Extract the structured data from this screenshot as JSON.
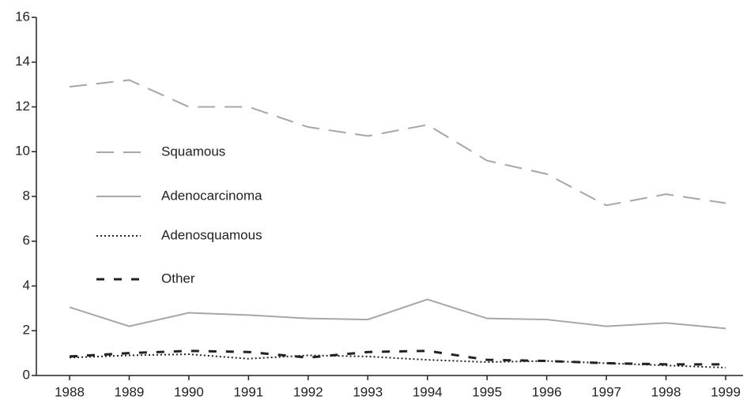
{
  "chart_data": {
    "type": "line",
    "categories": [
      "1988",
      "1989",
      "1990",
      "1991",
      "1992",
      "1993",
      "1994",
      "1995",
      "1996",
      "1997",
      "1998",
      "1999"
    ],
    "series": [
      {
        "name": "Squamous",
        "color": "#a6a6a6",
        "style": "dashed",
        "values": [
          12.9,
          13.2,
          12.0,
          12.0,
          11.1,
          10.7,
          11.2,
          9.6,
          9.0,
          7.6,
          8.1,
          7.7
        ]
      },
      {
        "name": "Adenocarcinoma",
        "color": "#a6a6a6",
        "style": "solid",
        "values": [
          3.05,
          2.2,
          2.8,
          2.7,
          2.55,
          2.5,
          3.4,
          2.55,
          2.5,
          2.2,
          2.35,
          2.1
        ]
      },
      {
        "name": "Adenosquamous",
        "color": "#222222",
        "style": "dotted",
        "values": [
          0.8,
          0.9,
          0.95,
          0.75,
          0.9,
          0.85,
          0.7,
          0.6,
          0.65,
          0.55,
          0.45,
          0.35
        ]
      },
      {
        "name": "Other",
        "color": "#222222",
        "style": "dashed-bold",
        "values": [
          0.85,
          1.0,
          1.1,
          1.05,
          0.8,
          1.05,
          1.1,
          0.7,
          0.65,
          0.55,
          0.5,
          0.5
        ]
      }
    ],
    "ylim": [
      0,
      16
    ],
    "yticks": [
      0,
      2,
      4,
      6,
      8,
      10,
      12,
      14,
      16
    ],
    "grid": false,
    "legend": "left"
  }
}
